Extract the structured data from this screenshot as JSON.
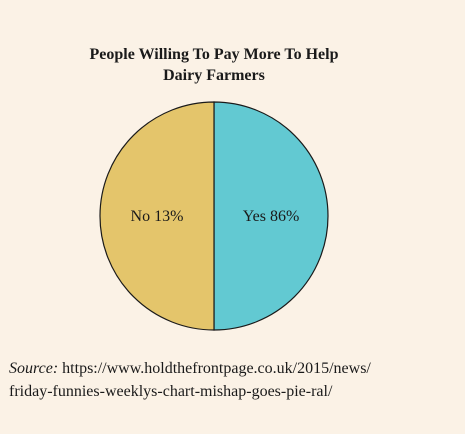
{
  "chart_data": {
    "type": "pie",
    "title_lines": [
      "People Willing To Pay More To Help",
      "Dairy Farmers"
    ],
    "slices": [
      {
        "label": "Yes 86%",
        "value": 86,
        "color": "#62c9d2"
      },
      {
        "label": "No 13%",
        "value": 13,
        "color": "#e4c56b"
      }
    ],
    "drawn_as_equal_halves": true,
    "edge_color": "#1a1a1a"
  },
  "source": {
    "label": "Source:",
    "text_line1": "https://www.holdthefrontpage.co.uk/2015/news/",
    "text_line2": "friday-funnies-weeklys-chart-mishap-goes-pie-ral/"
  },
  "colors": {
    "background": "#fbf2e6"
  }
}
